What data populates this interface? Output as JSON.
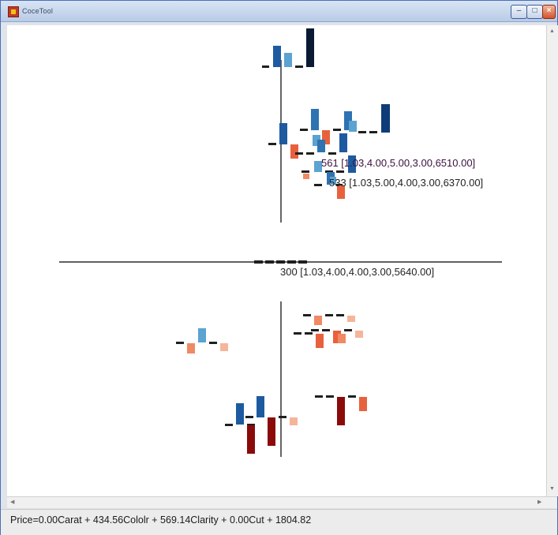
{
  "window": {
    "title": "CoceTool"
  },
  "colors": {
    "dark": "#1f1f1f",
    "navy": "#0a1a33",
    "blue_dark": "#0e3c78",
    "blue": "#1e5aa0",
    "blue_mid": "#2e73b2",
    "blue_light": "#5ba3d0",
    "orange": "#e8613d",
    "orange_mid": "#f08a64",
    "peach": "#f5b59a",
    "dark_red": "#8b0a0a",
    "label_purple": "#3a1040",
    "label_dark": "#222222"
  },
  "labels": [
    {
      "text": "561 [1.03,4.00,5.00,3.00,6510.00]",
      "color_key": "label_purple"
    },
    {
      "text": "533 [1.03,5.00,4.00,3.00,6370.00]",
      "color_key": "label_dark"
    },
    {
      "text": "300 [1.03,4.00,4.00,3.00,5640.00]",
      "color_key": "label_dark"
    }
  ],
  "status": {
    "formula": "Price=0.00Carat + 434.56Cololr + 569.14Clarity + 0.00Cut + 1804.82"
  }
}
